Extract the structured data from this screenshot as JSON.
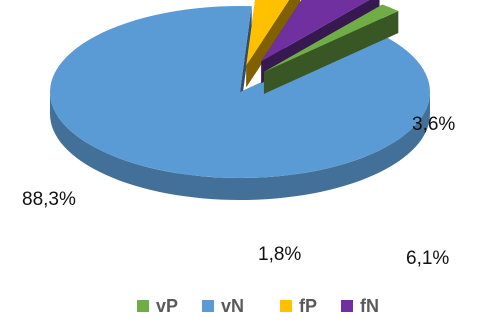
{
  "chart_data": {
    "type": "pie",
    "style": "3d-exploded",
    "categories": [
      "vP",
      "vN",
      "fP",
      "fN"
    ],
    "values": [
      1.8,
      88.3,
      3.6,
      6.1
    ],
    "labels": [
      "1,8%",
      "88,3%",
      "3,6%",
      "6,1%"
    ],
    "colors": [
      "#70AD47",
      "#5B9BD5",
      "#FFC000",
      "#7030A0"
    ],
    "title": "",
    "legend_position": "bottom"
  }
}
